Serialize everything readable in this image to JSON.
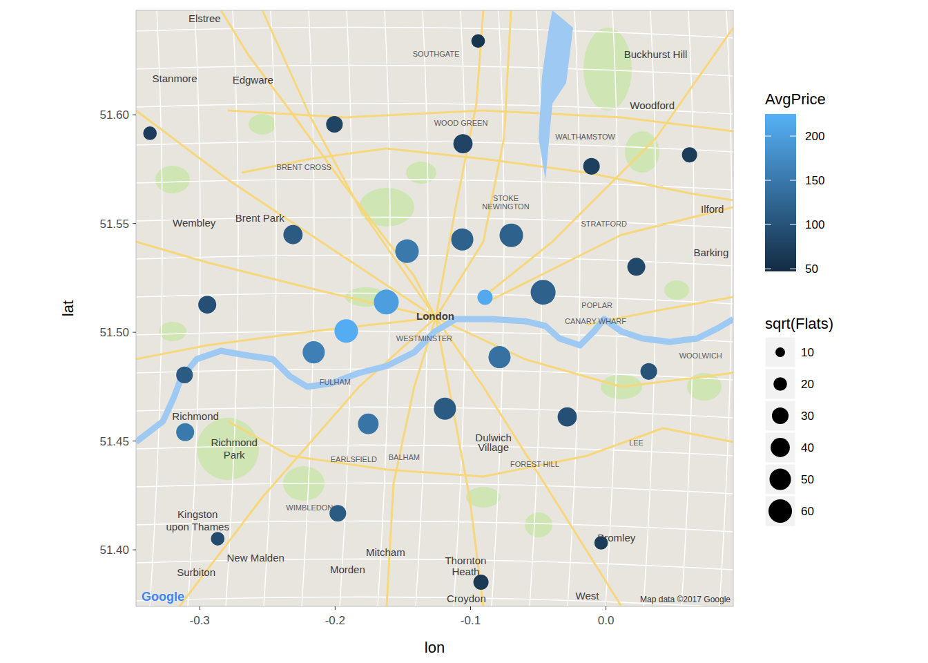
{
  "chart_data": {
    "type": "scatter",
    "x_label": "lon",
    "y_label": "lat",
    "xlim": [
      -0.347,
      0.094
    ],
    "ylim": [
      51.374,
      51.648
    ],
    "xticks": [
      -0.3,
      -0.2,
      -0.1,
      {
        "value": 0,
        "label": "0.0"
      }
    ],
    "yticks": [
      {
        "value": 51.4,
        "label": "51.40"
      },
      51.45,
      {
        "value": 51.5,
        "label": "51.50"
      },
      51.55,
      {
        "value": 51.6,
        "label": "51.60"
      }
    ],
    "x": [
      -0.0944,
      -0.3367,
      -0.2005,
      -0.1056,
      -0.0107,
      0.0617,
      -0.2311,
      -0.1469,
      -0.1061,
      -0.0699,
      0.0224,
      -0.2944,
      -0.1622,
      -0.0893,
      -0.0464,
      -0.1918,
      -0.2158,
      -0.0786,
      -0.3112,
      0.0316,
      -0.1755,
      -0.1189,
      -0.0286,
      -0.3107,
      -0.198,
      -0.2867,
      -0.0036,
      -0.0923
    ],
    "values": [
      51.6339,
      51.5915,
      51.5956,
      51.5867,
      51.5763,
      51.5816,
      51.5449,
      51.5373,
      51.5427,
      51.5446,
      51.5301,
      51.5127,
      51.5139,
      51.5161,
      51.5184,
      51.5006,
      51.4908,
      51.4886,
      51.4804,
      51.482,
      51.4579,
      51.4649,
      51.4611,
      51.4541,
      51.4168,
      51.4051,
      51.4032,
      51.3851
    ],
    "size": [
      20,
      20,
      30,
      40,
      30,
      25,
      40,
      60,
      53,
      60,
      35,
      35,
      67,
      25,
      67,
      60,
      53,
      53,
      30,
      30,
      46,
      53,
      40,
      35,
      30,
      20,
      20,
      25
    ],
    "AvgPrice": [
      60,
      70,
      80,
      80,
      75,
      70,
      110,
      150,
      120,
      120,
      85,
      95,
      200,
      215,
      120,
      220,
      160,
      140,
      110,
      100,
      145,
      110,
      95,
      150,
      110,
      90,
      70,
      65
    ],
    "colorbar": {
      "title": "AvgPrice",
      "range": [
        47,
        225
      ],
      "ticks": [
        50,
        100,
        150,
        200
      ],
      "colors": [
        "#132B43",
        "#56B1F7"
      ]
    },
    "size_legend": {
      "title": "sqrt(Flats)",
      "values": [
        10,
        20,
        30,
        40,
        50,
        60
      ]
    },
    "annotations": [
      {
        "text": "Elstree",
        "x": -0.2964,
        "y": 51.6443
      },
      {
        "text": "Stanmore",
        "x": -0.3184,
        "y": 51.6165
      },
      {
        "text": "Edgware",
        "x": -0.2607,
        "y": 51.6158
      },
      {
        "text": "SOUTHGATE",
        "x": -0.1255,
        "y": 51.6282
      },
      {
        "text": "Buckhurst Hill",
        "x": 0.0367,
        "y": 51.6278
      },
      {
        "text": "Woodford",
        "x": 0.0342,
        "y": 51.6041
      },
      {
        "text": "WOOD GREEN",
        "x": -0.1071,
        "y": 51.5965
      },
      {
        "text": "WALTHAMSTOW",
        "x": -0.0153,
        "y": 51.5902
      },
      {
        "text": "BRENT CROSS",
        "x": -0.223,
        "y": 51.5763
      },
      {
        "text": "STOKE",
        "x": -0.074,
        "y": 51.5618
      },
      {
        "text": "NEWINGTON",
        "x": -0.074,
        "y": 51.558
      },
      {
        "text": "Wembley",
        "x": -0.3041,
        "y": 51.5503
      },
      {
        "text": "Brent Park",
        "x": -0.2556,
        "y": 51.5525
      },
      {
        "text": "STRATFORD",
        "x": -0.0015,
        "y": 51.5503
      },
      {
        "text": "Ilford",
        "x": 0.0786,
        "y": 51.5566
      },
      {
        "text": "Barking",
        "x": 0.0776,
        "y": 51.5364
      },
      {
        "text": "London",
        "x": -0.126,
        "y": 51.5073
      },
      {
        "text": "WESTMINSTER",
        "x": -0.1342,
        "y": 51.4975
      },
      {
        "text": "POPLAR",
        "x": -0.0066,
        "y": 51.5127
      },
      {
        "text": "CANARY WHARF",
        "x": -0.0077,
        "y": 51.5054
      },
      {
        "text": "FULHAM",
        "x": -0.2,
        "y": 51.4775
      },
      {
        "text": "WOOLWICH",
        "x": 0.0699,
        "y": 51.4896
      },
      {
        "text": "Richmond",
        "x": -0.3031,
        "y": 51.4614
      },
      {
        "text": "Richmond",
        "x": -0.2745,
        "y": 51.4494
      },
      {
        "text": "Park",
        "x": -0.2745,
        "y": 51.4434
      },
      {
        "text": "Dulwich",
        "x": -0.0831,
        "y": 51.4516
      },
      {
        "text": "Village",
        "x": -0.0831,
        "y": 51.4469
      },
      {
        "text": "EARLSFIELD",
        "x": -0.1862,
        "y": 51.4421
      },
      {
        "text": "BALHAM",
        "x": -0.149,
        "y": 51.443
      },
      {
        "text": "FOREST HILL",
        "x": -0.0526,
        "y": 51.4396
      },
      {
        "text": "LEE",
        "x": 0.0224,
        "y": 51.4497
      },
      {
        "text": "WIMBLEDON",
        "x": -0.2189,
        "y": 51.4196
      },
      {
        "text": "Kingston",
        "x": -0.3015,
        "y": 51.4161
      },
      {
        "text": "upon Thames",
        "x": -0.3015,
        "y": 51.4104
      },
      {
        "text": "New Malden",
        "x": -0.2587,
        "y": 51.3962
      },
      {
        "text": "Surbiton",
        "x": -0.3026,
        "y": 51.3896
      },
      {
        "text": "Mitcham",
        "x": -0.1628,
        "y": 51.3987
      },
      {
        "text": "Morden",
        "x": -0.1908,
        "y": 51.3908
      },
      {
        "text": "Thornton",
        "x": -0.1036,
        "y": 51.3949
      },
      {
        "text": "Heath",
        "x": -0.1036,
        "y": 51.3899
      },
      {
        "text": "Bromley",
        "x": 0.0077,
        "y": 51.4053
      },
      {
        "text": "Croydon",
        "x": -0.1031,
        "y": 51.3775
      },
      {
        "text": "West",
        "x": -0.0138,
        "y": 51.3788
      }
    ],
    "logo": "Google",
    "source": "Map data ©2017 Google"
  }
}
